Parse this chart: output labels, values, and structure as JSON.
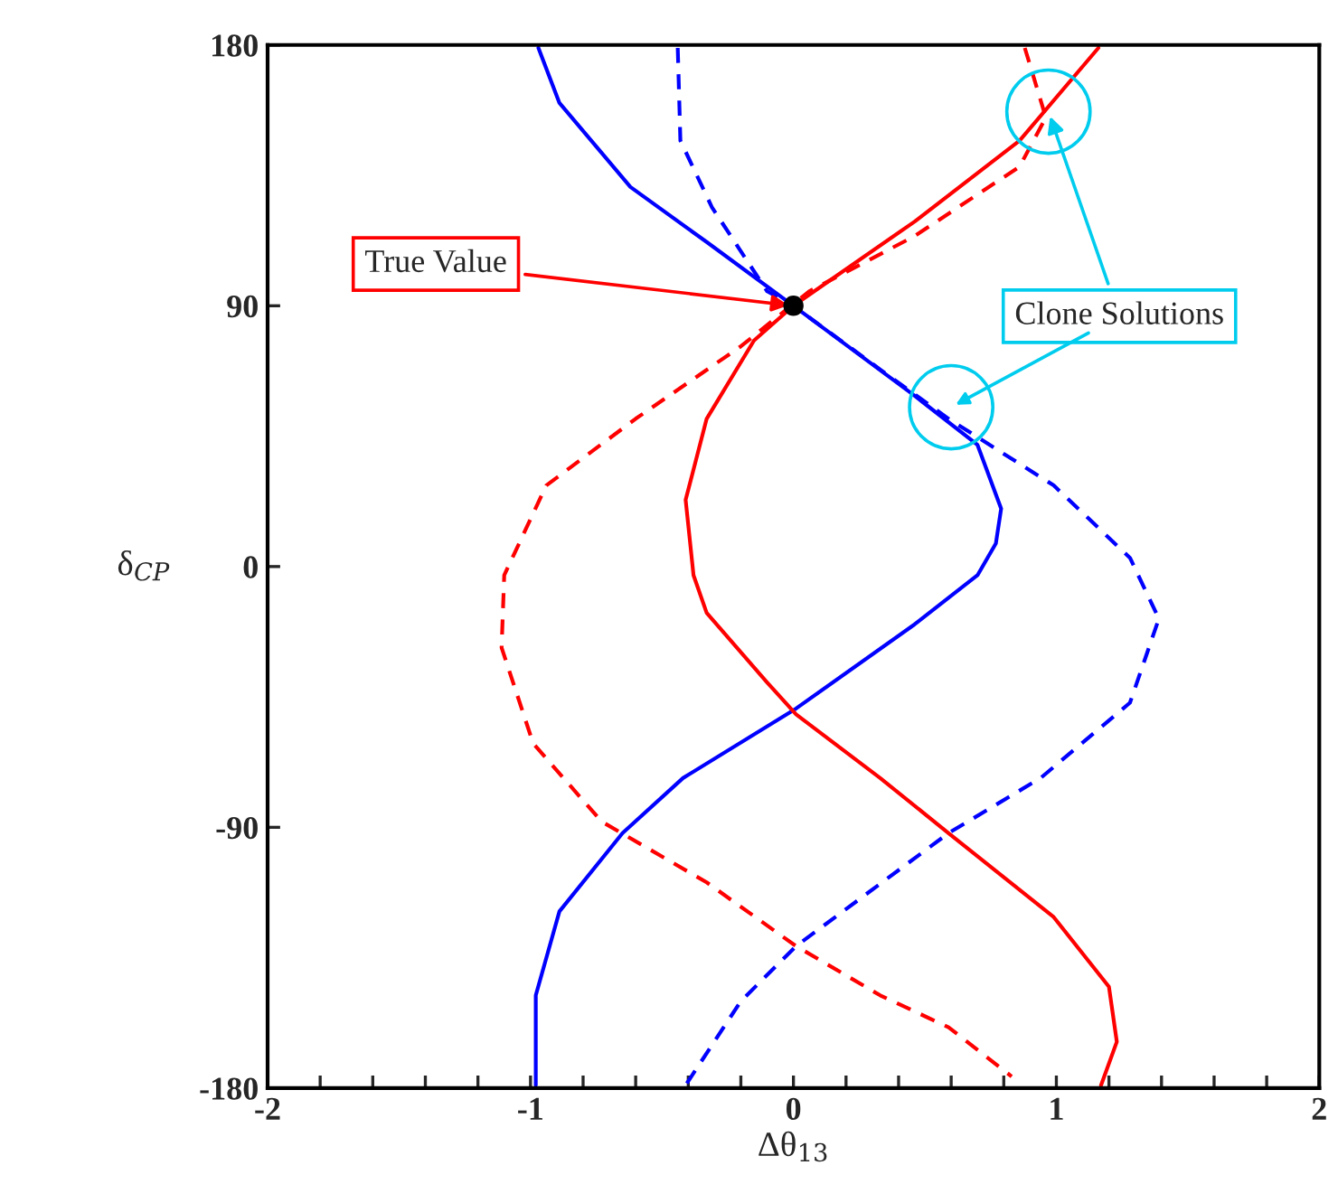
{
  "chart_data": {
    "type": "line",
    "xlabel": "Δθ$_{13}$",
    "ylabel": "δ$_{CP}$",
    "xlim": [
      -2,
      2
    ],
    "ylim": [
      -180,
      180
    ],
    "xticks": [
      -2,
      {
        "value": -1.8,
        "label": null
      },
      {
        "value": -1.6,
        "label": null
      },
      {
        "value": -1.4,
        "label": null
      },
      {
        "value": -1.2,
        "label": null
      },
      -1,
      {
        "value": -0.8,
        "label": null
      },
      {
        "value": -0.6,
        "label": null
      },
      {
        "value": -0.4,
        "label": null
      },
      {
        "value": -0.2,
        "label": null
      },
      0,
      {
        "value": 0.2,
        "label": null
      },
      {
        "value": 0.4,
        "label": null
      },
      {
        "value": 0.6,
        "label": null
      },
      {
        "value": 0.8,
        "label": null
      },
      1,
      {
        "value": 1.2,
        "label": null
      },
      {
        "value": 1.4,
        "label": null
      },
      {
        "value": 1.6,
        "label": null
      },
      {
        "value": 1.8,
        "label": null
      },
      2
    ],
    "yticks": [
      -180,
      -90,
      0,
      90,
      180
    ],
    "grid": false,
    "legend": false,
    "series": [
      {
        "color": "#0000ff",
        "line_style": "solid",
        "x": [
          -0.97,
          -0.89,
          -0.62,
          -0.33,
          0.0,
          0.46,
          0.7,
          0.79,
          0.77,
          0.7,
          0.46,
          0.01,
          -0.42,
          -0.65,
          -0.89,
          -0.98,
          -0.98
        ],
        "values": [
          179,
          160,
          131,
          112,
          90,
          59,
          42,
          20,
          8,
          -3,
          -20,
          -49,
          -73,
          -92,
          -119,
          -148,
          -179
        ]
      },
      {
        "color": "#0000ff",
        "line_style": "dashed",
        "x": [
          -0.44,
          -0.43,
          -0.31,
          -0.1,
          0.0,
          0.33,
          0.59,
          0.99,
          1.28,
          1.39,
          1.28,
          0.94,
          0.59,
          0.01,
          -0.2,
          -0.41
        ],
        "values": [
          179,
          147,
          124,
          95,
          90,
          68,
          51,
          28,
          3,
          -18,
          -47,
          -73,
          -92,
          -131,
          -150,
          -179
        ]
      },
      {
        "color": "#ff0000",
        "line_style": "solid",
        "x": [
          1.16,
          0.86,
          0.46,
          0.0,
          -0.15,
          -0.33,
          -0.41,
          -0.38,
          -0.33,
          -0.1,
          0.01,
          0.33,
          0.59,
          0.99,
          1.2,
          1.23,
          1.17
        ],
        "values": [
          179,
          147,
          119,
          90,
          78,
          51,
          23,
          -3,
          -16,
          -40,
          -51,
          -73,
          -92,
          -121,
          -145,
          -164,
          -179
        ]
      },
      {
        "color": "#ff0000",
        "line_style": "dashed",
        "x": [
          0.88,
          0.96,
          0.86,
          0.46,
          0.06,
          -0.2,
          -0.6,
          -0.94,
          -1.1,
          -1.11,
          -0.99,
          -0.73,
          -0.33,
          0.01,
          0.33,
          0.59,
          0.83
        ],
        "values": [
          179,
          155,
          138,
          114,
          95,
          76,
          51,
          28,
          -3,
          -28,
          -61,
          -88,
          -109,
          -131,
          -148,
          -159,
          -176
        ]
      },
      {
        "type": "scatter",
        "marker": "circle",
        "color": "#000000",
        "x": [
          0
        ],
        "values": [
          90
        ]
      },
      {
        "type": "scatter",
        "marker": "circle",
        "color": "#00ccee",
        "x": [
          0.97,
          0.6
        ],
        "values": [
          157,
          55
        ]
      }
    ],
    "annotations": [
      {
        "text": "True Value",
        "x": 0,
        "y": 90
      },
      {
        "text": "Clone Solutions",
        "x": 0.97,
        "y": 157
      }
    ]
  }
}
